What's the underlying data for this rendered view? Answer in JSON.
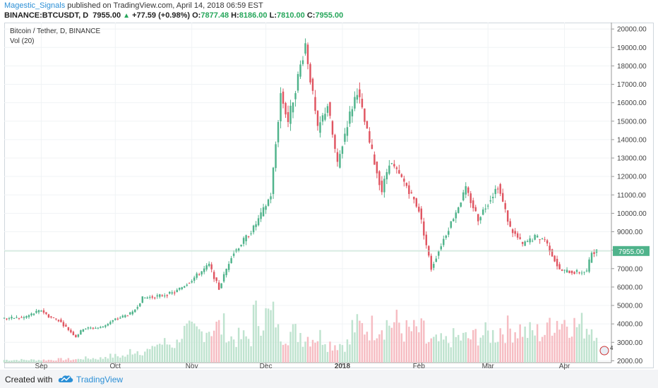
{
  "header": {
    "author": "Magestic_Signals",
    "published_text": "published on TradingView.com, April 14, 2018 06:59 EST",
    "symbol": "BINANCE:BTCUSDT, D",
    "last": "7955.00",
    "change": "+77.59 (+0.98%)",
    "open_label": "O:",
    "open": "7877.48",
    "high_label": "H:",
    "high": "8186.00",
    "low_label": "L:",
    "low": "7810.00",
    "close_label": "C:",
    "close": "7955.00"
  },
  "legend": {
    "title": "Bitcoin / Tether, D, BINANCE",
    "volume": "Vol (20)"
  },
  "footer": {
    "created_with": "Created with",
    "brand": "TradingView"
  },
  "colors": {
    "up": "#4fb38b",
    "down": "#e05561",
    "vol_up": "#bfe3cf",
    "vol_down": "#f6bcc2",
    "last_price_bg": "#4fb38b",
    "vol_ma": "#f0b089"
  },
  "chart_data": {
    "type": "candlestick",
    "symbol": "BINANCE:BTCUSDT",
    "title": "Bitcoin / Tether, D, BINANCE",
    "y_ticks": [
      "20000.00",
      "19000.00",
      "18000.00",
      "17000.00",
      "16000.00",
      "15000.00",
      "14000.00",
      "13000.00",
      "12000.00",
      "11000.00",
      "10000.00",
      "9000.00",
      "8000.00",
      "7000.00",
      "6000.00",
      "5000.00",
      "4000.00",
      "3000.00",
      "2000.00"
    ],
    "ylim": [
      1900,
      20350
    ],
    "x_ticks": [
      "Sep",
      "Oct",
      "Nov",
      "Dec",
      "2018",
      "Feb",
      "Mar",
      "Apr"
    ],
    "last_price_label": "7955.00",
    "last_price": 7955,
    "badge_text": "4",
    "close_path": [
      [
        "2017-08-17",
        4300
      ],
      [
        "2017-08-25",
        4350
      ],
      [
        "2017-09-01",
        4750
      ],
      [
        "2017-09-04",
        4400
      ],
      [
        "2017-09-08",
        4200
      ],
      [
        "2017-09-15",
        3300
      ],
      [
        "2017-09-18",
        3750
      ],
      [
        "2017-09-25",
        3800
      ],
      [
        "2017-10-01",
        4250
      ],
      [
        "2017-10-08",
        4600
      ],
      [
        "2017-10-12",
        5400
      ],
      [
        "2017-10-18",
        5500
      ],
      [
        "2017-10-25",
        5700
      ],
      [
        "2017-11-01",
        6400
      ],
      [
        "2017-11-08",
        7200
      ],
      [
        "2017-11-12",
        5900
      ],
      [
        "2017-11-17",
        7700
      ],
      [
        "2017-11-26",
        9200
      ],
      [
        "2017-11-29",
        9900
      ],
      [
        "2017-12-03",
        11000
      ],
      [
        "2017-12-07",
        16500
      ],
      [
        "2017-12-10",
        15000
      ],
      [
        "2017-12-17",
        19200
      ],
      [
        "2017-12-22",
        14500
      ],
      [
        "2017-12-26",
        15900
      ],
      [
        "2017-12-30",
        12600
      ],
      [
        "2018-01-03",
        14900
      ],
      [
        "2018-01-07",
        16700
      ],
      [
        "2018-01-12",
        13800
      ],
      [
        "2018-01-17",
        11200
      ],
      [
        "2018-01-20",
        12800
      ],
      [
        "2018-01-27",
        11500
      ],
      [
        "2018-02-01",
        10200
      ],
      [
        "2018-02-06",
        7000
      ],
      [
        "2018-02-10",
        8300
      ],
      [
        "2018-02-16",
        10100
      ],
      [
        "2018-02-20",
        11300
      ],
      [
        "2018-02-25",
        9700
      ],
      [
        "2018-03-05",
        11500
      ],
      [
        "2018-03-10",
        9200
      ],
      [
        "2018-03-15",
        8300
      ],
      [
        "2018-03-20",
        8700
      ],
      [
        "2018-03-24",
        8600
      ],
      [
        "2018-03-30",
        6900
      ],
      [
        "2018-04-05",
        6800
      ],
      [
        "2018-04-10",
        6850
      ],
      [
        "2018-04-12",
        7900
      ],
      [
        "2018-04-14",
        7955
      ]
    ],
    "volume_scale_note": "relative",
    "volume_peaks": [
      0.05,
      0.05,
      0.06,
      0.08,
      0.12,
      0.22,
      0.35,
      0.55,
      0.65,
      0.45,
      0.85,
      0.55,
      0.48,
      0.35,
      0.65,
      0.72,
      0.58,
      0.38,
      0.45,
      0.52,
      0.62,
      0.55,
      0.78,
      0.68
    ]
  }
}
